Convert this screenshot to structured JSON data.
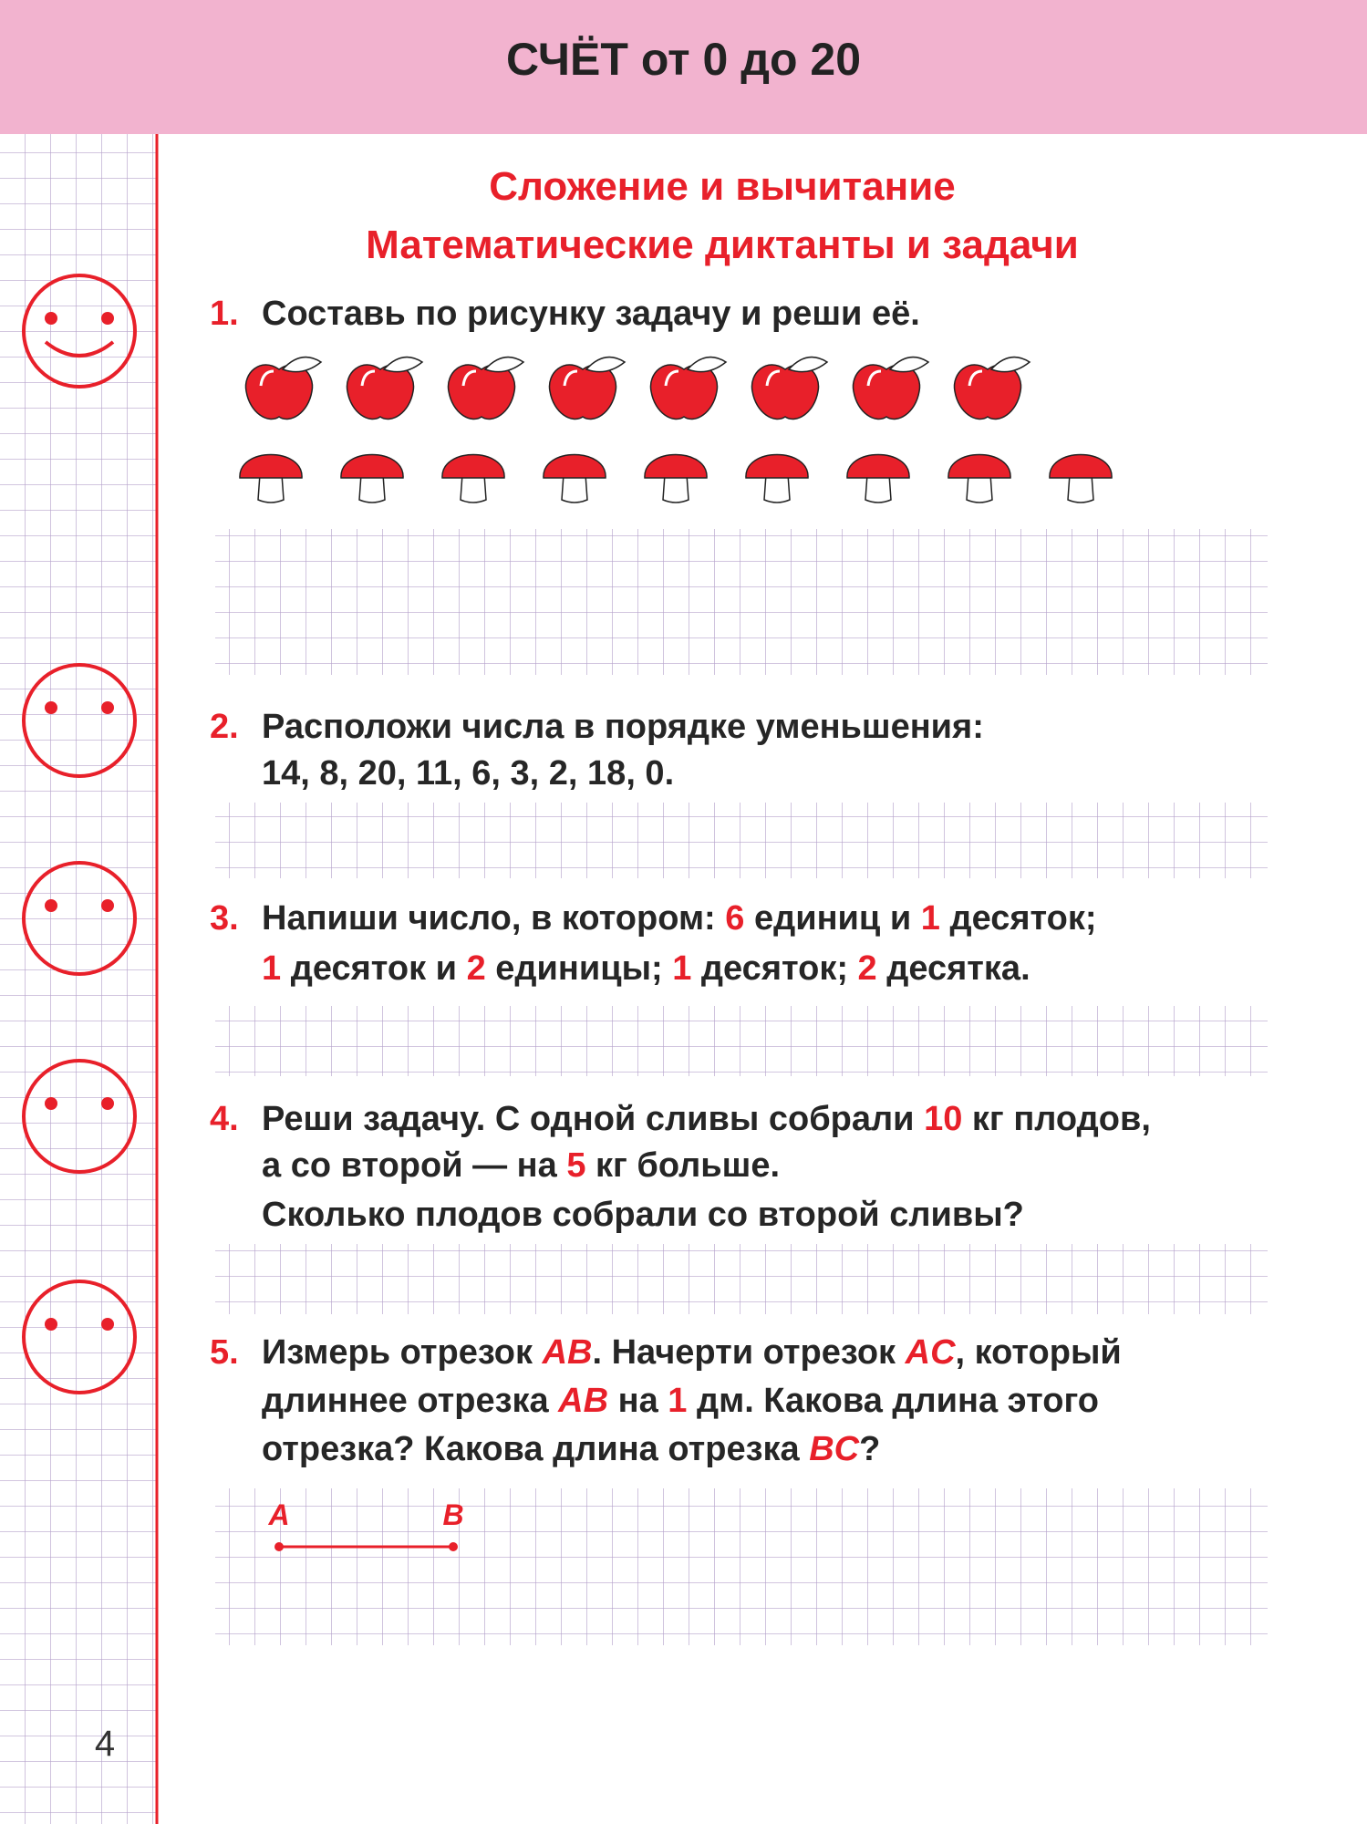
{
  "header": {
    "title": "СЧЁТ от 0 до 20"
  },
  "section": {
    "title": "Сложение и вычитание",
    "subtitle": "Математические диктанты и задачи"
  },
  "tasks": [
    {
      "number": "1.",
      "lines": [
        [
          {
            "text": "Составь по рисунку задачу и реши её."
          }
        ]
      ]
    },
    {
      "number": "2.",
      "lines": [
        [
          {
            "text": "Расположи числа в порядке уменьшения:"
          }
        ],
        [
          {
            "text": "14, 8, 20, 11, 6, 3, 2, 18, 0."
          }
        ]
      ]
    },
    {
      "number": "3.",
      "lines": [
        [
          {
            "text": "Напиши число, в котором: "
          },
          {
            "text": "6",
            "color": "#e8202a"
          },
          {
            "text": " единиц и "
          },
          {
            "text": "1",
            "color": "#e8202a"
          },
          {
            "text": " десяток;"
          }
        ],
        [
          {
            "text": "1",
            "color": "#e8202a"
          },
          {
            "text": " десяток и "
          },
          {
            "text": "2",
            "color": "#e8202a"
          },
          {
            "text": " единицы; "
          },
          {
            "text": "1",
            "color": "#e8202a"
          },
          {
            "text": " десяток; "
          },
          {
            "text": "2",
            "color": "#e8202a"
          },
          {
            "text": " десятка."
          }
        ]
      ]
    },
    {
      "number": "4.",
      "lines": [
        [
          {
            "text": "Реши задачу. С одной сливы собрали "
          },
          {
            "text": "10",
            "color": "#e8202a"
          },
          {
            "text": " кг плодов,"
          }
        ],
        [
          {
            "text": "а со второй — на "
          },
          {
            "text": "5",
            "color": "#e8202a"
          },
          {
            "text": " кг больше."
          }
        ],
        [
          {
            "text": "Сколько плодов собрали со второй сливы?"
          }
        ]
      ]
    },
    {
      "number": "5.",
      "lines": [
        [
          {
            "text": "Измерь отрезок "
          },
          {
            "text": "AB",
            "color": "#e8202a",
            "italic": true
          },
          {
            "text": ". Начерти отрезок "
          },
          {
            "text": "AC",
            "color": "#e8202a",
            "italic": true
          },
          {
            "text": ", который"
          }
        ],
        [
          {
            "text": "длиннее отрезка "
          },
          {
            "text": "AB",
            "color": "#e8202a",
            "italic": true
          },
          {
            "text": " на "
          },
          {
            "text": "1",
            "color": "#e8202a"
          },
          {
            "text": " дм. Какова длина этого"
          }
        ],
        [
          {
            "text": "отрезка? Какова длина отрезка "
          },
          {
            "text": "BC",
            "color": "#e8202a",
            "italic": true
          },
          {
            "text": "?"
          }
        ]
      ]
    }
  ],
  "segment": {
    "start": "A",
    "end": "B"
  },
  "page_number": "4"
}
